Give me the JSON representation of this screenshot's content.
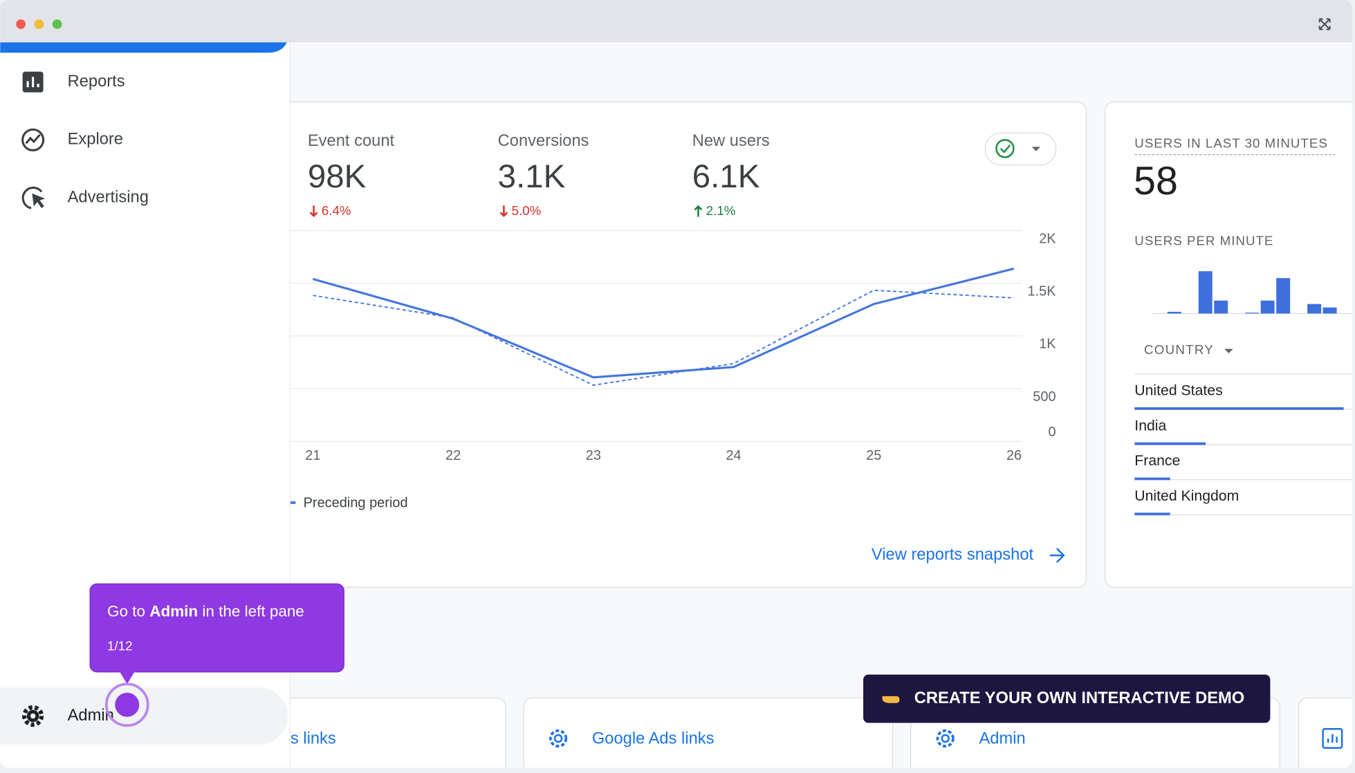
{
  "sidebar": {
    "items": [
      "Reports",
      "Explore",
      "Advertising"
    ],
    "admin": "Admin"
  },
  "metrics": [
    {
      "label": "Event count",
      "value": "98K",
      "change": "6.4%",
      "direction": "down"
    },
    {
      "label": "Conversions",
      "value": "3.1K",
      "change": "5.0%",
      "direction": "down"
    },
    {
      "label": "New users",
      "value": "6.1K",
      "change": "2.1%",
      "direction": "up"
    }
  ],
  "chart": {
    "type": "line",
    "categories": [
      "21",
      "22",
      "23",
      "24",
      "25",
      "26"
    ],
    "ylim": [
      0,
      2000
    ],
    "yticks": [
      0,
      500,
      {
        "value": 1000,
        "label": "1K"
      },
      {
        "value": 1500,
        "label": "1.5K"
      },
      {
        "value": 2000,
        "label": "2K"
      }
    ],
    "series": [
      {
        "color": "#4475e0",
        "values": [
          1541,
          1164,
          607,
          705,
          1303,
          1639
        ]
      },
      {
        "name": "Preceding period",
        "color": "#4475e0",
        "values": [
          1385,
          1172,
          533,
          738,
          1434,
          1361
        ]
      }
    ]
  },
  "link": "View reports snapshot",
  "realtime": {
    "title": "USERS IN LAST 30 MINUTES",
    "value": 58,
    "subtitle": "USERS PER MINUTE",
    "bars": [
      0,
      2,
      0,
      49,
      15,
      0,
      1,
      15,
      41,
      0,
      11,
      7
    ],
    "bar_color": "#3f6fdc",
    "country_header": "COUNTRY",
    "countries": [
      "United States",
      "India",
      "France",
      "United Kingdom"
    ],
    "country_values": [
      100,
      34,
      17,
      17
    ]
  },
  "cards": [
    "s links",
    "Google Ads links",
    "Admin"
  ],
  "tooltip": {
    "before": "Go to ",
    "bold": "Admin",
    "after": " in the left pane",
    "step": "1/12"
  },
  "cta": "CREATE YOUR OWN INTERACTIVE DEMO"
}
